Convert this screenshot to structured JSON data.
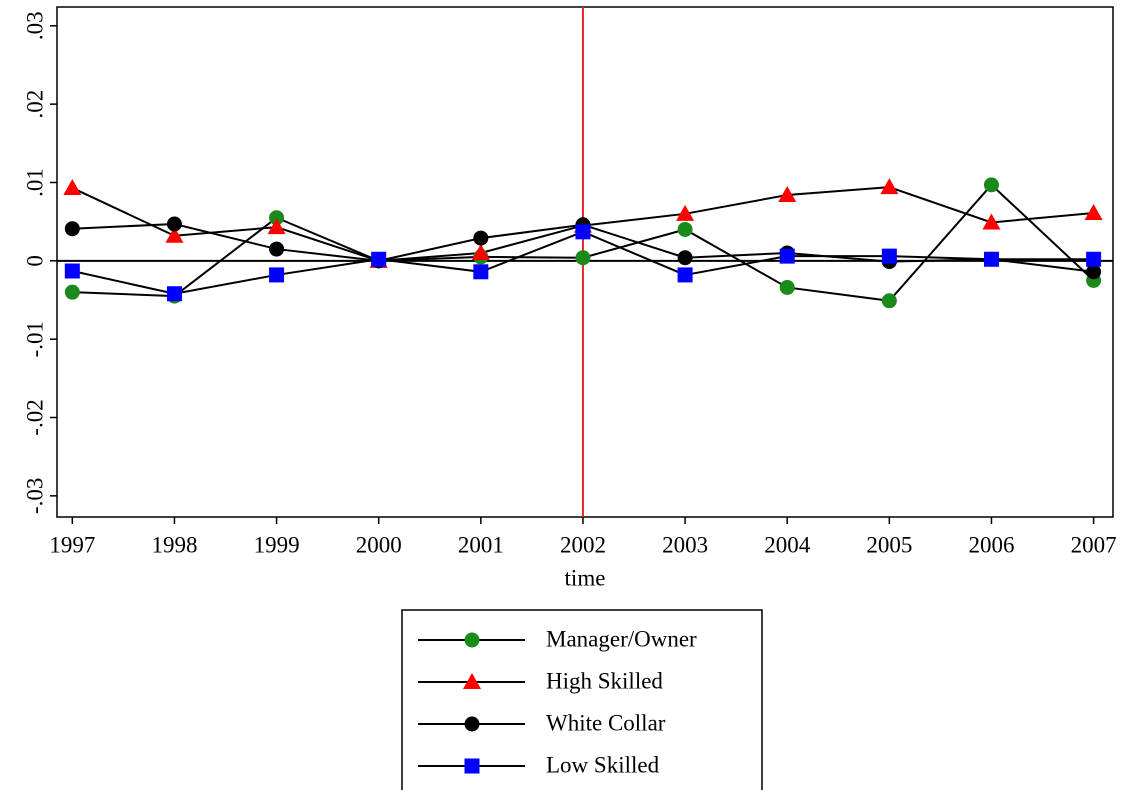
{
  "chart_data": {
    "type": "line",
    "x": [
      1997,
      1998,
      1999,
      2000,
      2001,
      2002,
      2003,
      2004,
      2005,
      2006,
      2007
    ],
    "xlabel": "time",
    "xlim": [
      1996.85,
      2007.19
    ],
    "xticks": [
      1997,
      1998,
      1999,
      2000,
      2001,
      2002,
      2003,
      2004,
      2005,
      2006,
      2007
    ],
    "ylim": [
      -0.0327,
      0.0324
    ],
    "yticks": [
      {
        "value": -0.03,
        "label": "-.03"
      },
      {
        "value": -0.02,
        "label": "-.02"
      },
      {
        "value": -0.01,
        "label": "-.01"
      },
      0,
      {
        "value": 0.01,
        "label": ".01"
      },
      {
        "value": 0.02,
        "label": ".02"
      },
      {
        "value": 0.03,
        "label": ".03"
      }
    ],
    "hline": 0,
    "vline": 2002,
    "vline_color": "#e8262a",
    "line_color": "#000000",
    "series": [
      {
        "name": "Manager/Owner",
        "color": "#1a8a1a",
        "marker": "circle",
        "values": [
          -0.004,
          -0.0045,
          0.0055,
          0,
          0.0005,
          0.0004,
          0.004,
          -0.0034,
          -0.0051,
          0.0097,
          -0.0025
        ]
      },
      {
        "name": "High Skilled",
        "color": "#ff0000",
        "marker": "triangle",
        "values": [
          0.0093,
          0.0032,
          0.0043,
          0,
          0.001,
          0.0045,
          0.006,
          0.0084,
          0.0094,
          0.0049,
          0.0061
        ]
      },
      {
        "name": "White Collar",
        "color": "#000000",
        "marker": "circle",
        "values": [
          0.0041,
          0.0047,
          0.0015,
          0,
          0.0029,
          0.0046,
          0.0004,
          0.001,
          -0.0001,
          0.0002,
          -0.0014
        ]
      },
      {
        "name": "Low Skilled",
        "color": "#0000ff",
        "marker": "square",
        "values": [
          -0.0013,
          -0.0042,
          -0.0018,
          0.0002,
          -0.0014,
          0.0037,
          -0.0018,
          0.0006,
          0.0006,
          0.0002,
          0.0002
        ]
      }
    ]
  }
}
